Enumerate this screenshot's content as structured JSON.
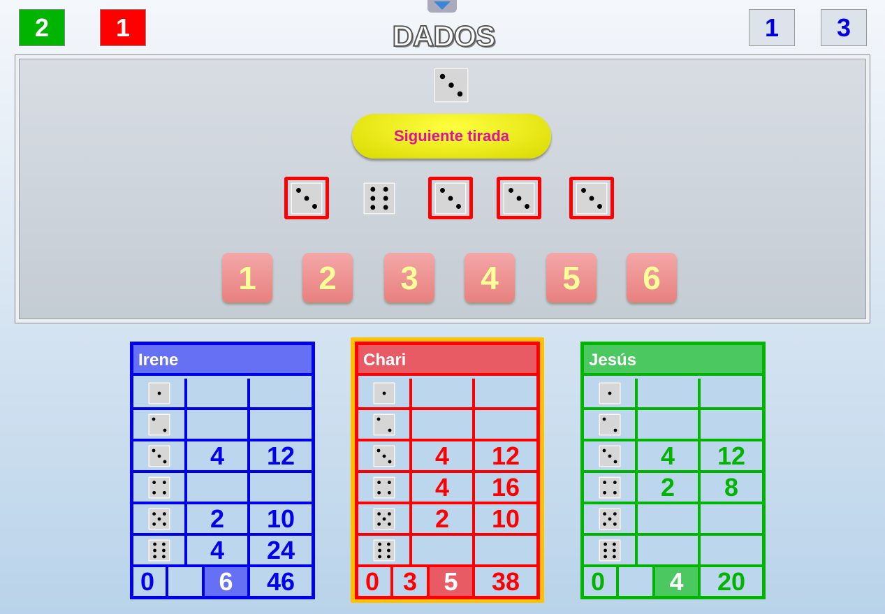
{
  "title": "DADOS",
  "top_left_scores": [
    {
      "value": "2",
      "color": "#00b400"
    },
    {
      "value": "1",
      "color": "#ff0000"
    }
  ],
  "top_right_counters": [
    "1",
    "3"
  ],
  "current_die": 3,
  "next_button": "Siguiente tirada",
  "rolled_dice": [
    {
      "value": 3,
      "selected": true
    },
    {
      "value": 6,
      "selected": false
    },
    {
      "value": 3,
      "selected": true
    },
    {
      "value": 3,
      "selected": true
    },
    {
      "value": 3,
      "selected": true
    }
  ],
  "number_buttons": [
    "1",
    "2",
    "3",
    "4",
    "5",
    "6"
  ],
  "players": [
    {
      "name": "Irene",
      "color": "#0000ee",
      "header_color": "#6670f5",
      "active": false,
      "rows": [
        [
          "",
          ""
        ],
        [
          "",
          ""
        ],
        [
          "4",
          "12"
        ],
        [
          "",
          ""
        ],
        [
          "2",
          "10"
        ],
        [
          "4",
          "24"
        ]
      ],
      "footer": [
        "0",
        "",
        "6",
        "46"
      ]
    },
    {
      "name": "Chari",
      "color": "#ff0000",
      "header_color": "#e85a64",
      "active": true,
      "rows": [
        [
          "",
          ""
        ],
        [
          "",
          ""
        ],
        [
          "4",
          "12"
        ],
        [
          "4",
          "16"
        ],
        [
          "2",
          "10"
        ],
        [
          "",
          ""
        ]
      ],
      "footer": [
        "0",
        "3",
        "5",
        "38"
      ]
    },
    {
      "name": "Jesús",
      "color": "#00b400",
      "header_color": "#4cc860",
      "active": false,
      "rows": [
        [
          "",
          ""
        ],
        [
          "",
          ""
        ],
        [
          "4",
          "12"
        ],
        [
          "2",
          "8"
        ],
        [
          "",
          ""
        ],
        [
          "",
          ""
        ]
      ],
      "footer": [
        "0",
        "",
        "4",
        "20"
      ]
    }
  ]
}
